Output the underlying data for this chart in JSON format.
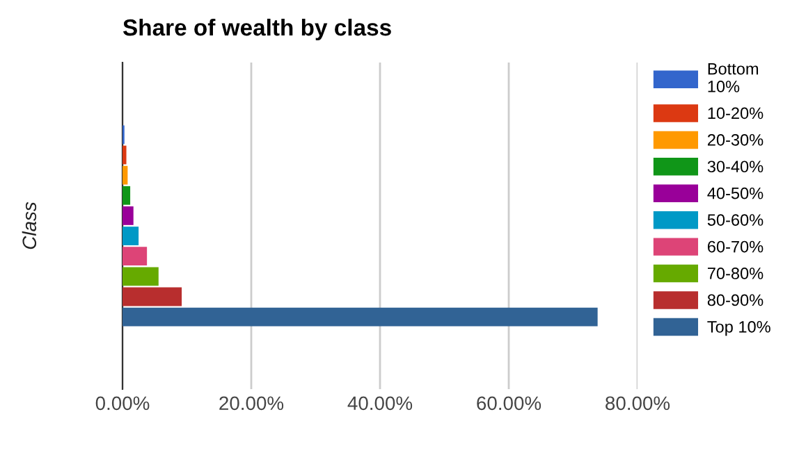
{
  "chart_data": {
    "type": "bar",
    "orientation": "horizontal",
    "title": "Share of wealth by class",
    "ylabel": "Class",
    "categories": [
      null
    ],
    "series": [
      {
        "name": "Bottom 10%",
        "color": "#3366cc",
        "values": [
          0.3
        ]
      },
      {
        "name": "10-20%",
        "color": "#dc3912",
        "values": [
          0.6
        ]
      },
      {
        "name": "20-30%",
        "color": "#ff9900",
        "values": [
          0.8
        ]
      },
      {
        "name": "30-40%",
        "color": "#109618",
        "values": [
          1.2
        ]
      },
      {
        "name": "40-50%",
        "color": "#990099",
        "values": [
          1.7
        ]
      },
      {
        "name": "50-60%",
        "color": "#0099c6",
        "values": [
          2.5
        ]
      },
      {
        "name": "60-70%",
        "color": "#dd4477",
        "values": [
          3.8
        ]
      },
      {
        "name": "70-80%",
        "color": "#66aa00",
        "values": [
          5.6
        ]
      },
      {
        "name": "80-90%",
        "color": "#b82e2e",
        "values": [
          9.2
        ]
      },
      {
        "name": "Top 10%",
        "color": "#316395",
        "values": [
          73.8
        ]
      }
    ],
    "xlim": [
      0,
      80
    ],
    "xticks": [
      {
        "value": 0,
        "label": "0.00%"
      },
      {
        "value": 20,
        "label": "20.00%"
      },
      {
        "value": 40,
        "label": "40.00%"
      },
      {
        "value": 60,
        "label": "60.00%"
      },
      {
        "value": 80,
        "label": "80.00%"
      }
    ],
    "grid": "x",
    "legend": "right"
  }
}
